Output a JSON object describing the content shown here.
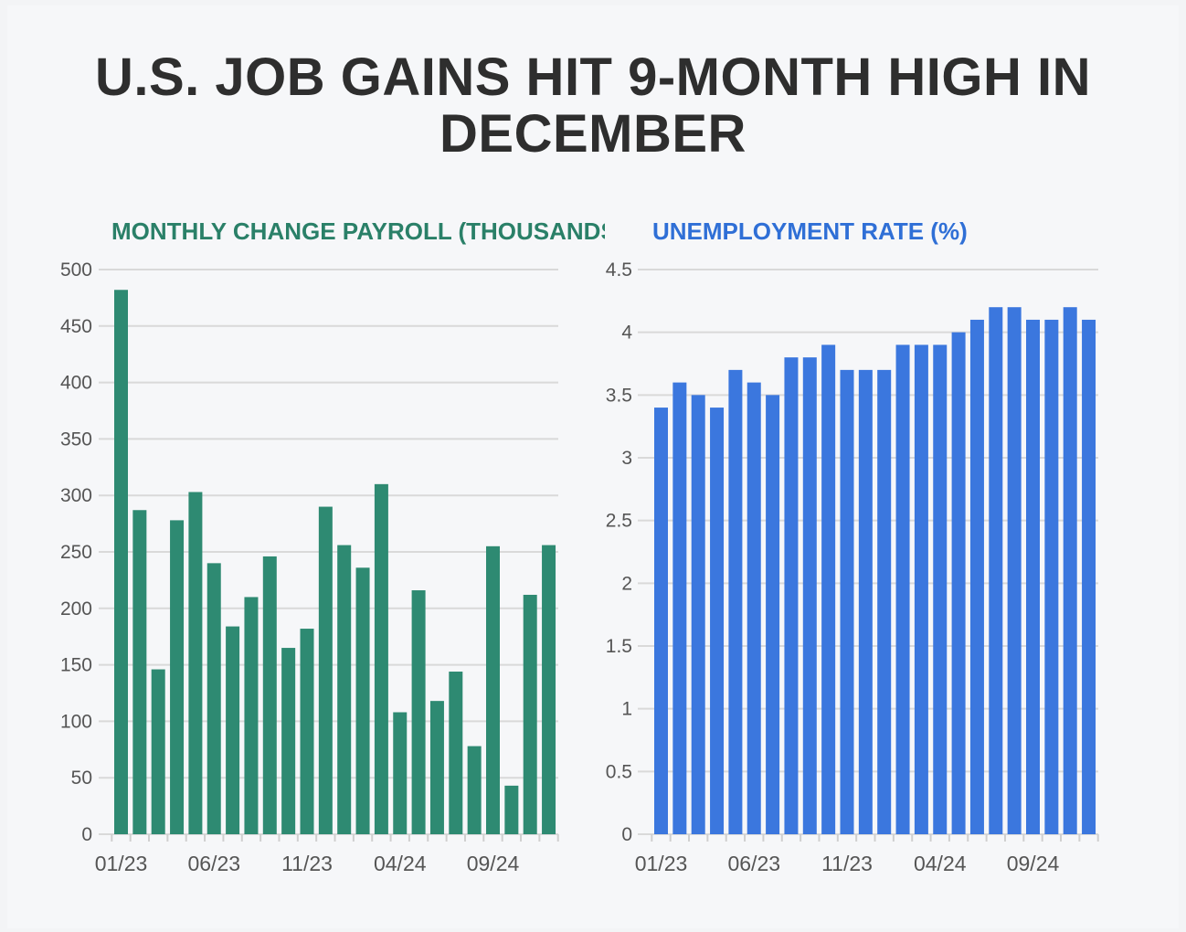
{
  "title": "U.S. JOB GAINS HIT 9-MONTH HIGH IN DECEMBER",
  "colors": {
    "payroll": "#2e8a72",
    "unemployment": "#3b77de",
    "payroll_title": "#2a8068",
    "unemployment_title": "#2f6fd6",
    "grid": "#d9d9d9",
    "background": "#f6f7f9"
  },
  "chart_data": [
    {
      "type": "bar",
      "title": "MONTHLY CHANGE PAYROLL (THOUSANDS)",
      "xlabel": "",
      "ylabel": "",
      "ylim": [
        0,
        500
      ],
      "yticks": [
        0,
        50,
        100,
        150,
        200,
        250,
        300,
        350,
        400,
        450,
        500
      ],
      "xtick_labels": [
        "01/23",
        "06/23",
        "11/23",
        "04/24",
        "09/24"
      ],
      "xtick_indices": [
        0,
        5,
        10,
        15,
        20
      ],
      "grid": true,
      "categories": [
        "01/23",
        "02/23",
        "03/23",
        "04/23",
        "05/23",
        "06/23",
        "07/23",
        "08/23",
        "09/23",
        "10/23",
        "11/23",
        "12/23",
        "01/24",
        "02/24",
        "03/24",
        "04/24",
        "05/24",
        "06/24",
        "07/24",
        "08/24",
        "09/24",
        "10/24",
        "11/24",
        "12/24"
      ],
      "values": [
        482,
        287,
        146,
        278,
        303,
        240,
        184,
        210,
        246,
        165,
        182,
        290,
        256,
        236,
        310,
        108,
        216,
        118,
        144,
        78,
        255,
        43,
        212,
        256
      ]
    },
    {
      "type": "bar",
      "title": "UNEMPLOYMENT RATE (%)",
      "xlabel": "",
      "ylabel": "",
      "ylim": [
        0,
        4.5
      ],
      "yticks": [
        0,
        0.5,
        1,
        1.5,
        2,
        2.5,
        3,
        3.5,
        4,
        4.5
      ],
      "xtick_labels": [
        "01/23",
        "06/23",
        "11/23",
        "04/24",
        "09/24"
      ],
      "xtick_indices": [
        0,
        5,
        10,
        15,
        20
      ],
      "grid": true,
      "categories": [
        "01/23",
        "02/23",
        "03/23",
        "04/23",
        "05/23",
        "06/23",
        "07/23",
        "08/23",
        "09/23",
        "10/23",
        "11/23",
        "12/23",
        "01/24",
        "02/24",
        "03/24",
        "04/24",
        "05/24",
        "06/24",
        "07/24",
        "08/24",
        "09/24",
        "10/24",
        "11/24",
        "12/24"
      ],
      "values": [
        3.4,
        3.6,
        3.5,
        3.4,
        3.7,
        3.6,
        3.5,
        3.8,
        3.8,
        3.9,
        3.7,
        3.7,
        3.7,
        3.9,
        3.9,
        3.9,
        4.0,
        4.1,
        4.2,
        4.2,
        4.1,
        4.1,
        4.2,
        4.1
      ]
    }
  ]
}
